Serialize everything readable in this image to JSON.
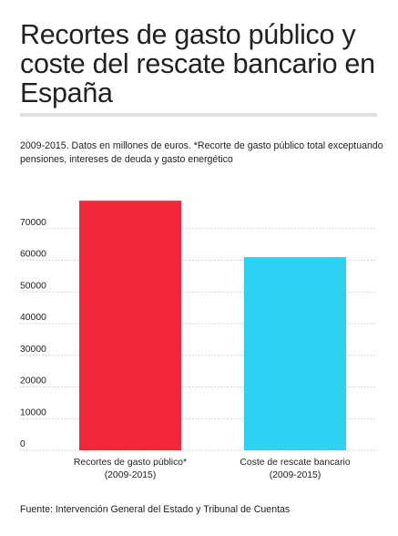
{
  "header": {
    "title": "Recortes de gasto público y coste del rescate bancario en España",
    "subtitle": "2009-2015. Datos en millones de euros. *Recorte de gasto público total exceptuando pensiones, intereses de deuda y gasto energético",
    "source": "Fuente: Intervención General del Estado y Tribunal de Cuentas"
  },
  "colors": {
    "bar_1": "#f2283a",
    "bar_2": "#2ed1f2",
    "grid": "#cccccc"
  },
  "chart_data": {
    "type": "bar",
    "categories": [
      [
        "Recortes de gasto público*",
        "(2009-2015)"
      ],
      [
        "Coste de rescate bancario",
        "(2009-2015)"
      ]
    ],
    "values": [
      78800,
      61000
    ],
    "yticks": [
      "0",
      "10000",
      "20000",
      "30000",
      "40000",
      "50000",
      "60000",
      "70000"
    ],
    "ylim": [
      0,
      80000
    ],
    "grid": true,
    "legend": "none"
  }
}
